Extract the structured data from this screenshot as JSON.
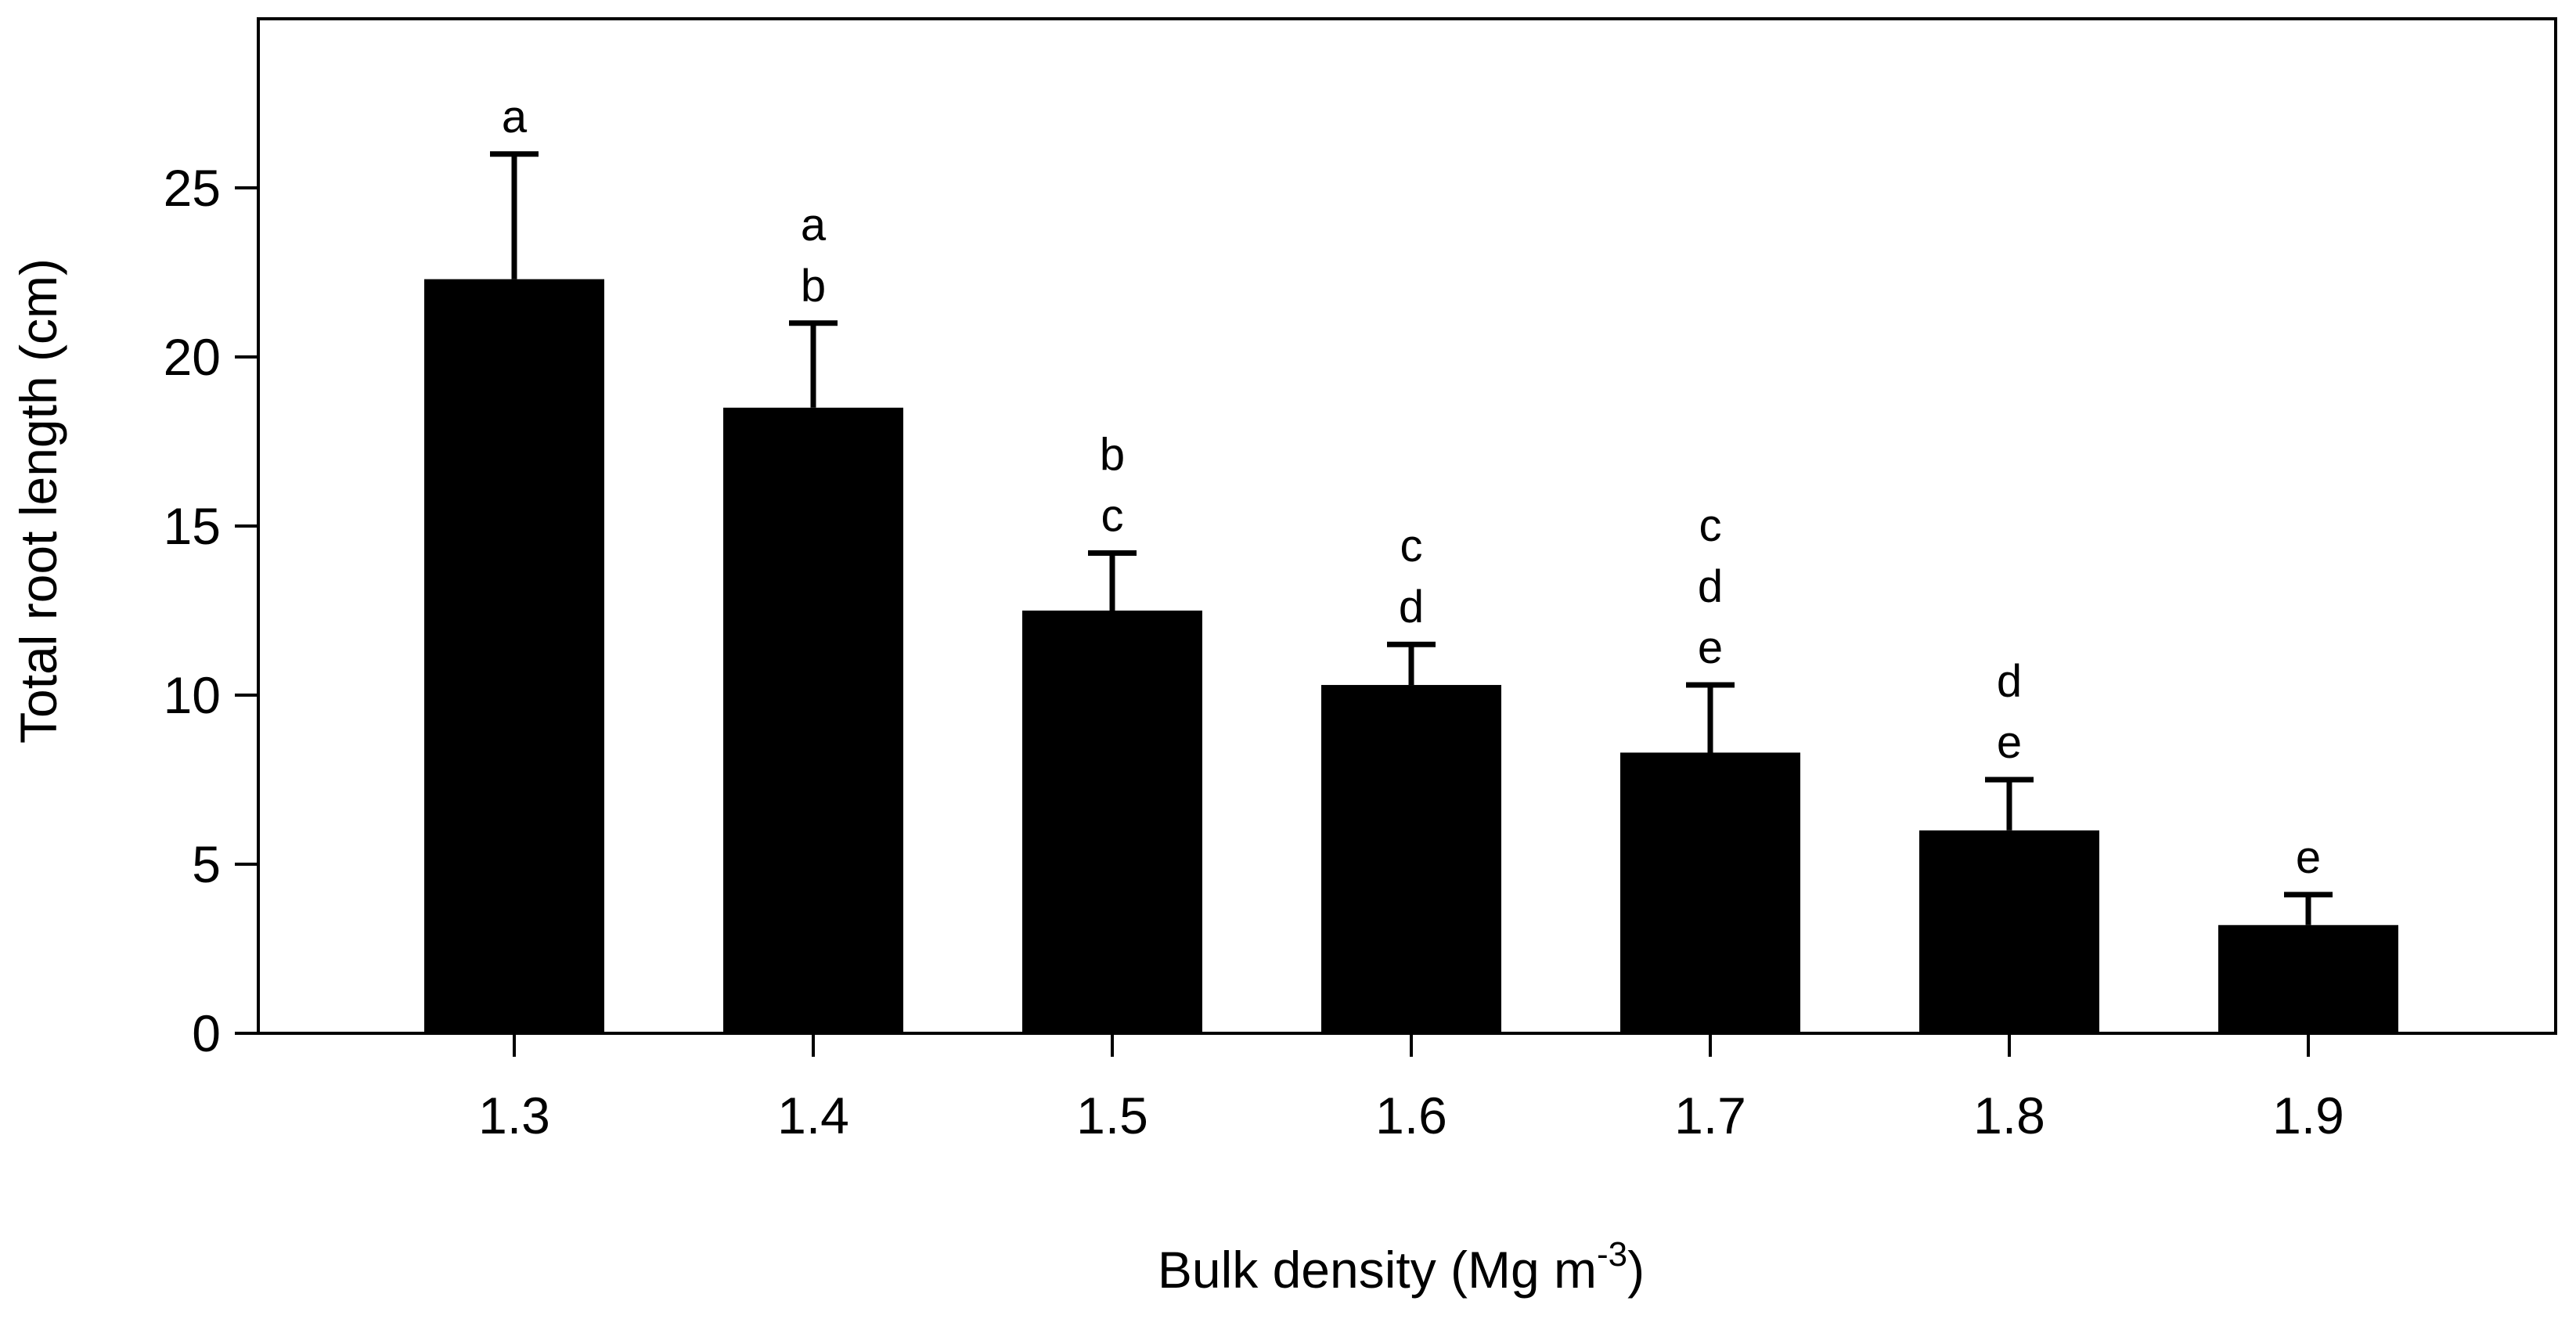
{
  "chart_data": {
    "type": "bar",
    "title": "",
    "xlabel": "Bulk density (Mg m",
    "xlabel_sup": "-3",
    "xlabel_close": ")",
    "ylabel": "Total root length (cm)",
    "categories": [
      "1.3",
      "1.4",
      "1.5",
      "1.6",
      "1.7",
      "1.8",
      "1.9"
    ],
    "values": [
      22.3,
      18.5,
      12.5,
      10.3,
      8.3,
      6.0,
      3.2
    ],
    "error_upper": [
      26.0,
      21.0,
      14.2,
      11.5,
      10.3,
      7.5,
      4.1
    ],
    "significance": [
      [
        "a"
      ],
      [
        "a",
        "b"
      ],
      [
        "b",
        "c"
      ],
      [
        "c",
        "d"
      ],
      [
        "c",
        "d",
        "e"
      ],
      [
        "d",
        "e"
      ],
      [
        "e"
      ]
    ],
    "ylim": [
      0,
      30
    ],
    "yticks": [
      0,
      5,
      10,
      15,
      20,
      25
    ],
    "grid": false,
    "legend": "none",
    "bar_color": "#000000"
  }
}
